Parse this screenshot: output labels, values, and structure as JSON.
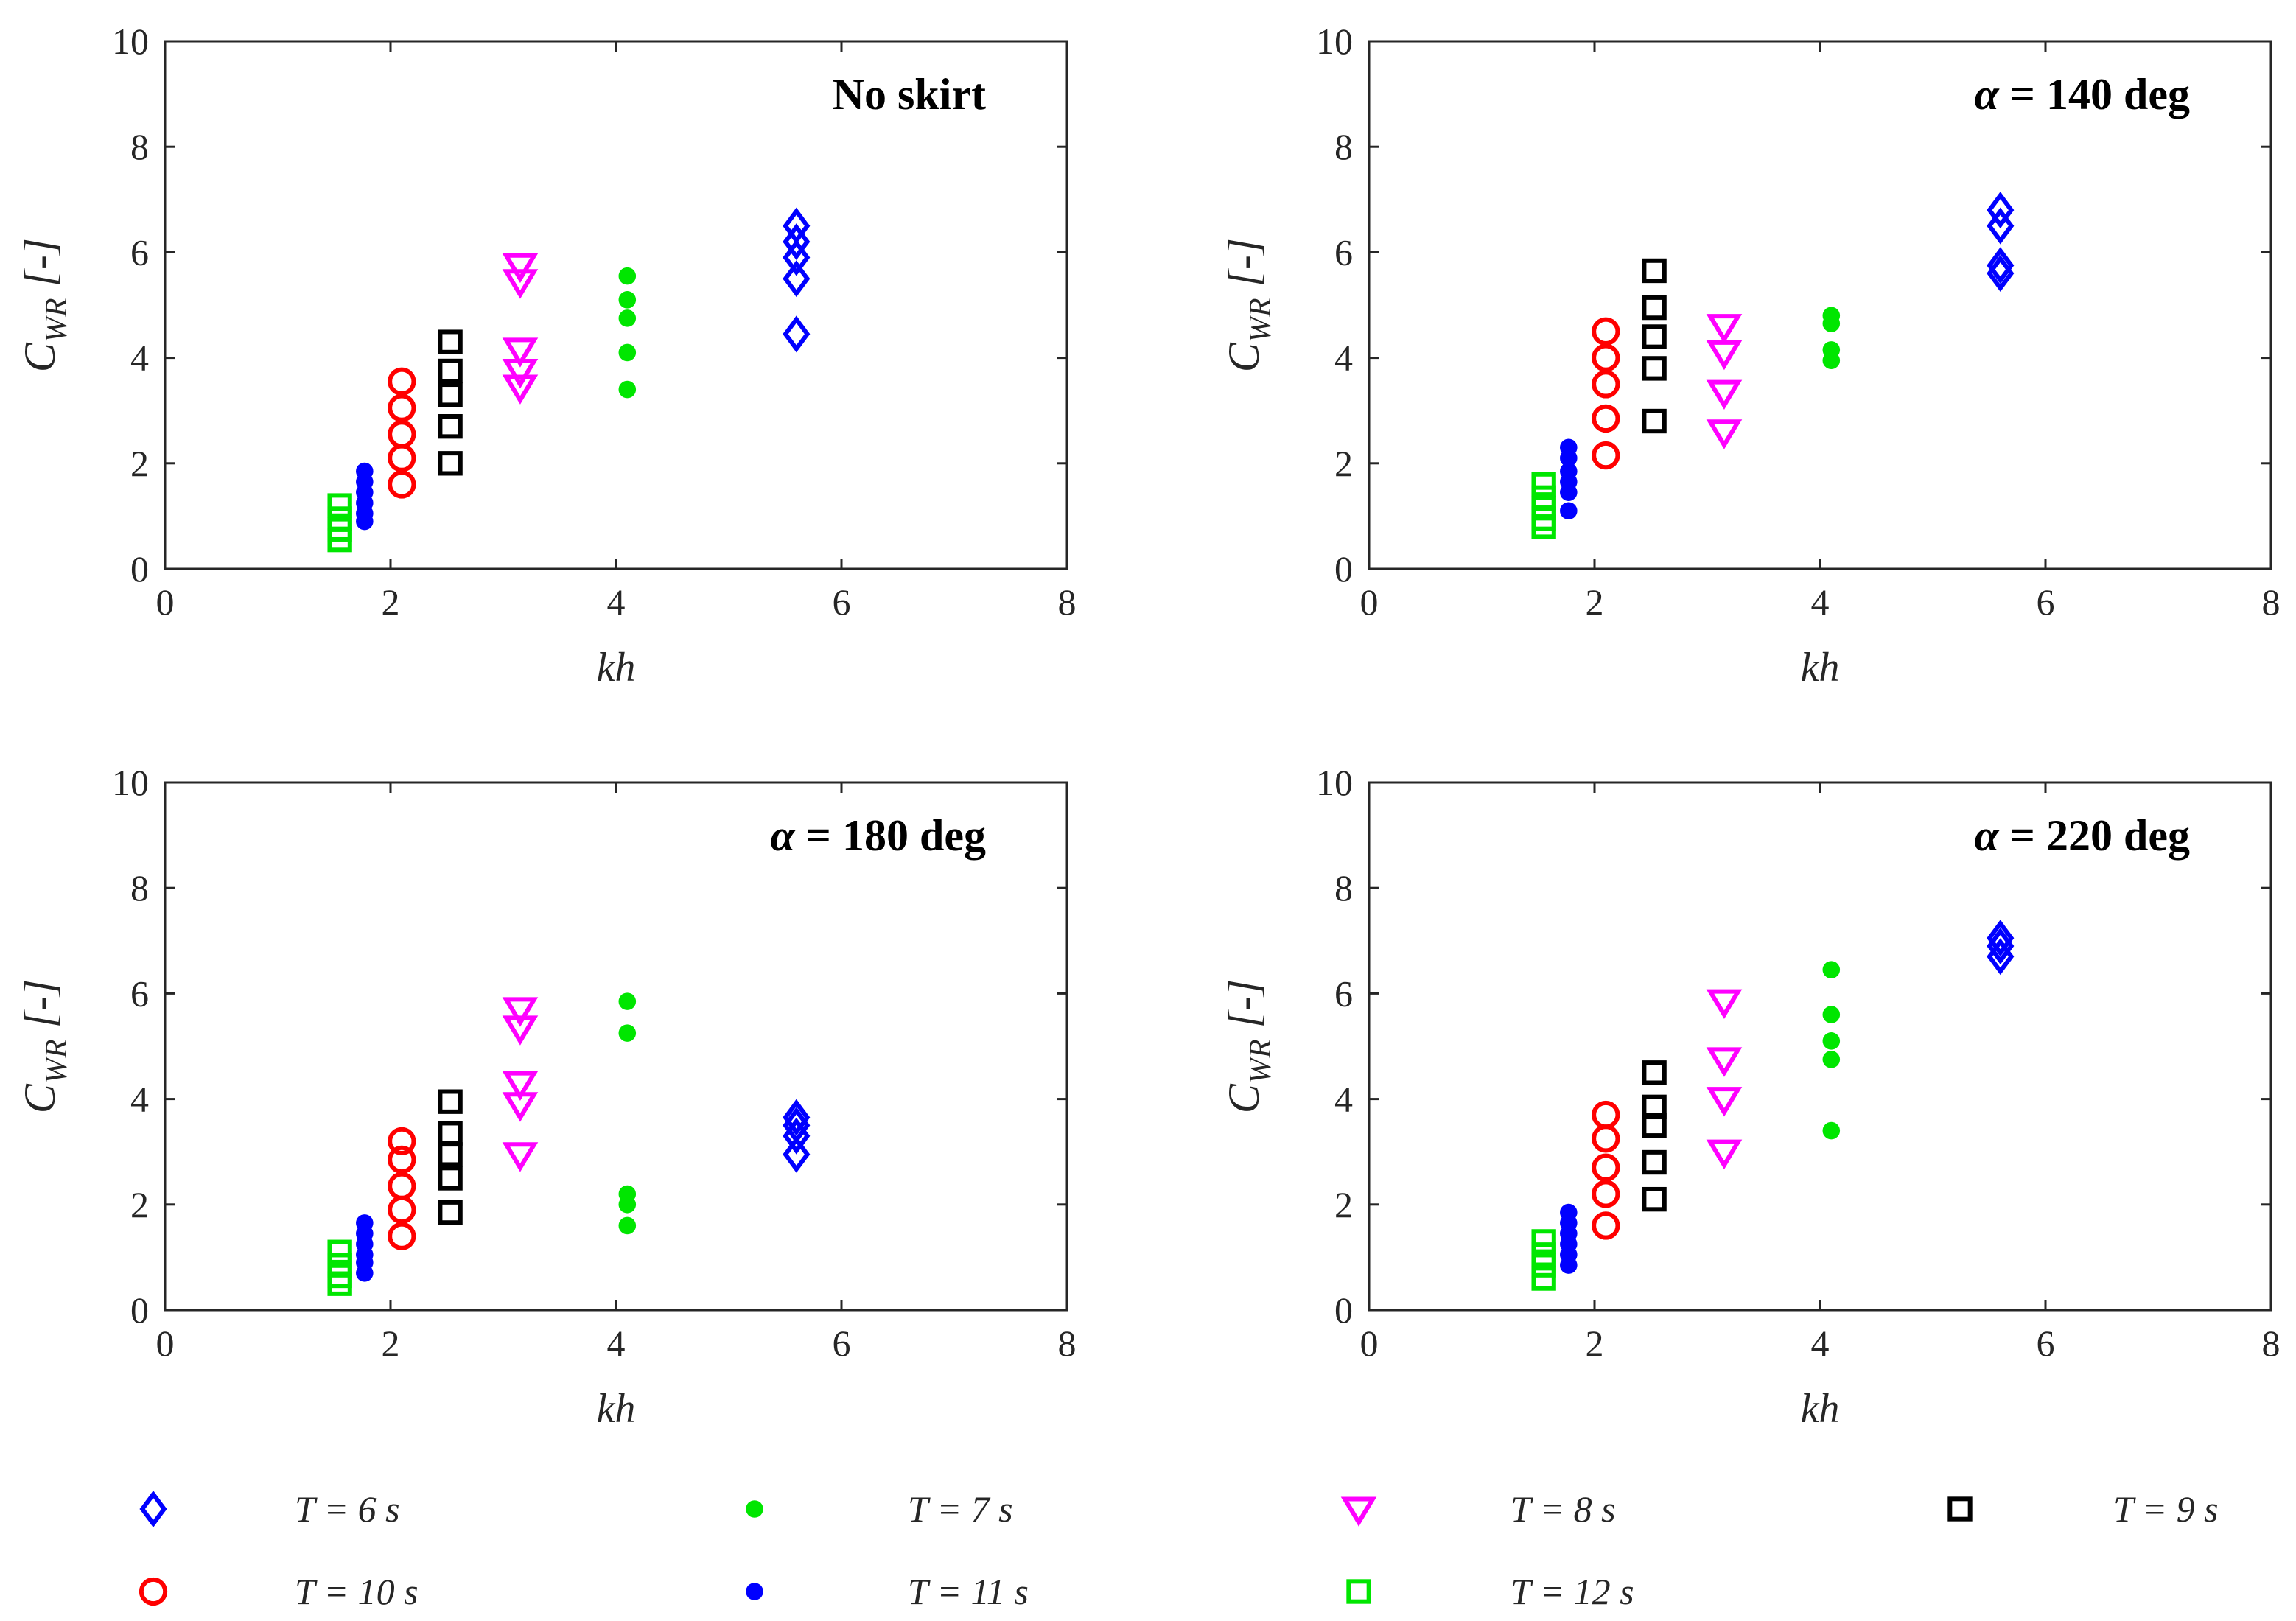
{
  "chart_data": [
    {
      "type": "scatter",
      "title": "No skirt",
      "xlabel": "kh",
      "ylabel": "C_WR [-]",
      "xlim": [
        0,
        8
      ],
      "ylim": [
        0,
        10
      ],
      "xticks": [
        "0",
        "2",
        "4",
        "6",
        "8"
      ],
      "yticks": [
        "0",
        "2",
        "4",
        "6",
        "8",
        "10"
      ],
      "series": [
        {
          "name": "T = 6 s",
          "x": 5.6,
          "values": [
            6.5,
            6.2,
            5.9,
            5.5,
            4.45
          ]
        },
        {
          "name": "T = 7 s",
          "x": 4.1,
          "values": [
            5.55,
            5.1,
            4.75,
            4.1,
            3.4
          ]
        },
        {
          "name": "T = 8 s",
          "x": 3.15,
          "values": [
            5.75,
            5.45,
            4.15,
            3.75,
            3.45
          ]
        },
        {
          "name": "T = 9 s",
          "x": 2.53,
          "values": [
            4.3,
            3.75,
            3.3,
            2.7,
            2.0
          ]
        },
        {
          "name": "T = 10 s",
          "x": 2.1,
          "values": [
            3.55,
            3.05,
            2.55,
            2.1,
            1.6
          ]
        },
        {
          "name": "T = 11 s",
          "x": 1.77,
          "values": [
            1.85,
            1.65,
            1.45,
            1.25,
            1.05,
            0.9
          ]
        },
        {
          "name": "T = 12 s",
          "x": 1.55,
          "values": [
            1.2,
            0.95,
            0.75,
            0.55
          ]
        }
      ]
    },
    {
      "type": "scatter",
      "title": "= 140 deg",
      "title_symbol": "α",
      "xlabel": "kh",
      "ylabel": "C_WR [-]",
      "xlim": [
        0,
        8
      ],
      "ylim": [
        0,
        10
      ],
      "xticks": [
        "0",
        "2",
        "4",
        "6",
        "8"
      ],
      "yticks": [
        "0",
        "2",
        "4",
        "6",
        "8",
        "10"
      ],
      "series": [
        {
          "name": "T = 6 s",
          "x": 5.6,
          "values": [
            6.8,
            6.5,
            5.75,
            5.6
          ]
        },
        {
          "name": "T = 7 s",
          "x": 4.1,
          "values": [
            4.8,
            4.65,
            4.15,
            3.95
          ]
        },
        {
          "name": "T = 8 s",
          "x": 3.15,
          "values": [
            4.6,
            4.1,
            3.35,
            2.6
          ]
        },
        {
          "name": "T = 9 s",
          "x": 2.53,
          "values": [
            5.65,
            4.95,
            4.4,
            3.8,
            2.8
          ]
        },
        {
          "name": "T = 10 s",
          "x": 2.1,
          "values": [
            4.5,
            4.0,
            3.5,
            2.85,
            2.15
          ]
        },
        {
          "name": "T = 11 s",
          "x": 1.77,
          "values": [
            2.3,
            2.1,
            1.85,
            1.65,
            1.45,
            1.1
          ]
        },
        {
          "name": "T = 12 s",
          "x": 1.55,
          "values": [
            1.6,
            1.35,
            1.15,
            0.95,
            0.8
          ]
        }
      ]
    },
    {
      "type": "scatter",
      "title": "= 180 deg",
      "title_symbol": "α",
      "xlabel": "kh",
      "ylabel": "C_WR [-]",
      "xlim": [
        0,
        8
      ],
      "ylim": [
        0,
        10
      ],
      "xticks": [
        "0",
        "2",
        "4",
        "6",
        "8"
      ],
      "yticks": [
        "0",
        "2",
        "4",
        "6",
        "8",
        "10"
      ],
      "series": [
        {
          "name": "T = 6 s",
          "x": 5.6,
          "values": [
            3.65,
            3.5,
            3.3,
            2.95
          ]
        },
        {
          "name": "T = 7 s",
          "x": 4.1,
          "values": [
            5.85,
            5.25,
            2.2,
            2.0,
            1.6
          ]
        },
        {
          "name": "T = 8 s",
          "x": 3.15,
          "values": [
            5.7,
            5.35,
            4.3,
            3.9,
            2.95
          ]
        },
        {
          "name": "T = 9 s",
          "x": 2.53,
          "values": [
            3.95,
            3.35,
            2.95,
            2.5,
            1.85
          ]
        },
        {
          "name": "T = 10 s",
          "x": 2.1,
          "values": [
            3.2,
            2.85,
            2.35,
            1.9,
            1.4
          ]
        },
        {
          "name": "T = 11 s",
          "x": 1.77,
          "values": [
            1.65,
            1.45,
            1.25,
            1.05,
            0.9,
            0.7
          ]
        },
        {
          "name": "T = 12 s",
          "x": 1.55,
          "values": [
            1.1,
            0.85,
            0.65,
            0.5
          ]
        }
      ]
    },
    {
      "type": "scatter",
      "title": "= 220 deg",
      "title_symbol": "α",
      "xlabel": "kh",
      "ylabel": "C_WR [-]",
      "xlim": [
        0,
        8
      ],
      "ylim": [
        0,
        10
      ],
      "xticks": [
        "0",
        "2",
        "4",
        "6",
        "8"
      ],
      "yticks": [
        "0",
        "2",
        "4",
        "6",
        "8",
        "10"
      ],
      "series": [
        {
          "name": "T = 6 s",
          "x": 5.6,
          "values": [
            7.05,
            6.9,
            6.7
          ]
        },
        {
          "name": "T = 7 s",
          "x": 4.1,
          "values": [
            6.45,
            5.6,
            5.1,
            4.75,
            3.4
          ]
        },
        {
          "name": "T = 8 s",
          "x": 3.15,
          "values": [
            5.85,
            4.75,
            4.0,
            3.0
          ]
        },
        {
          "name": "T = 9 s",
          "x": 2.53,
          "values": [
            4.5,
            3.85,
            3.5,
            2.8,
            2.1
          ]
        },
        {
          "name": "T = 10 s",
          "x": 2.1,
          "values": [
            3.7,
            3.25,
            2.7,
            2.2,
            1.6
          ]
        },
        {
          "name": "T = 11 s",
          "x": 1.77,
          "values": [
            1.85,
            1.65,
            1.45,
            1.25,
            1.05,
            0.85
          ]
        },
        {
          "name": "T = 12 s",
          "x": 1.55,
          "values": [
            1.3,
            1.05,
            0.85,
            0.6
          ]
        }
      ]
    }
  ],
  "legend": {
    "placement": "bottom",
    "entries": [
      {
        "label": "T = 6 s",
        "marker": "diamond-open",
        "color": "#0000ff"
      },
      {
        "label": "T = 7 s",
        "marker": "dot-filled",
        "color": "#00e600"
      },
      {
        "label": "T = 8 s",
        "marker": "triangle-down-open",
        "color": "#ff00ff"
      },
      {
        "label": "T = 9 s",
        "marker": "square-open",
        "color": "#000000"
      },
      {
        "label": "T = 10 s",
        "marker": "circle-open",
        "color": "#ff0000"
      },
      {
        "label": "T = 11 s",
        "marker": "dot-filled",
        "color": "#0000ff"
      },
      {
        "label": "T = 12 s",
        "marker": "square-open",
        "color": "#00e600"
      }
    ]
  }
}
